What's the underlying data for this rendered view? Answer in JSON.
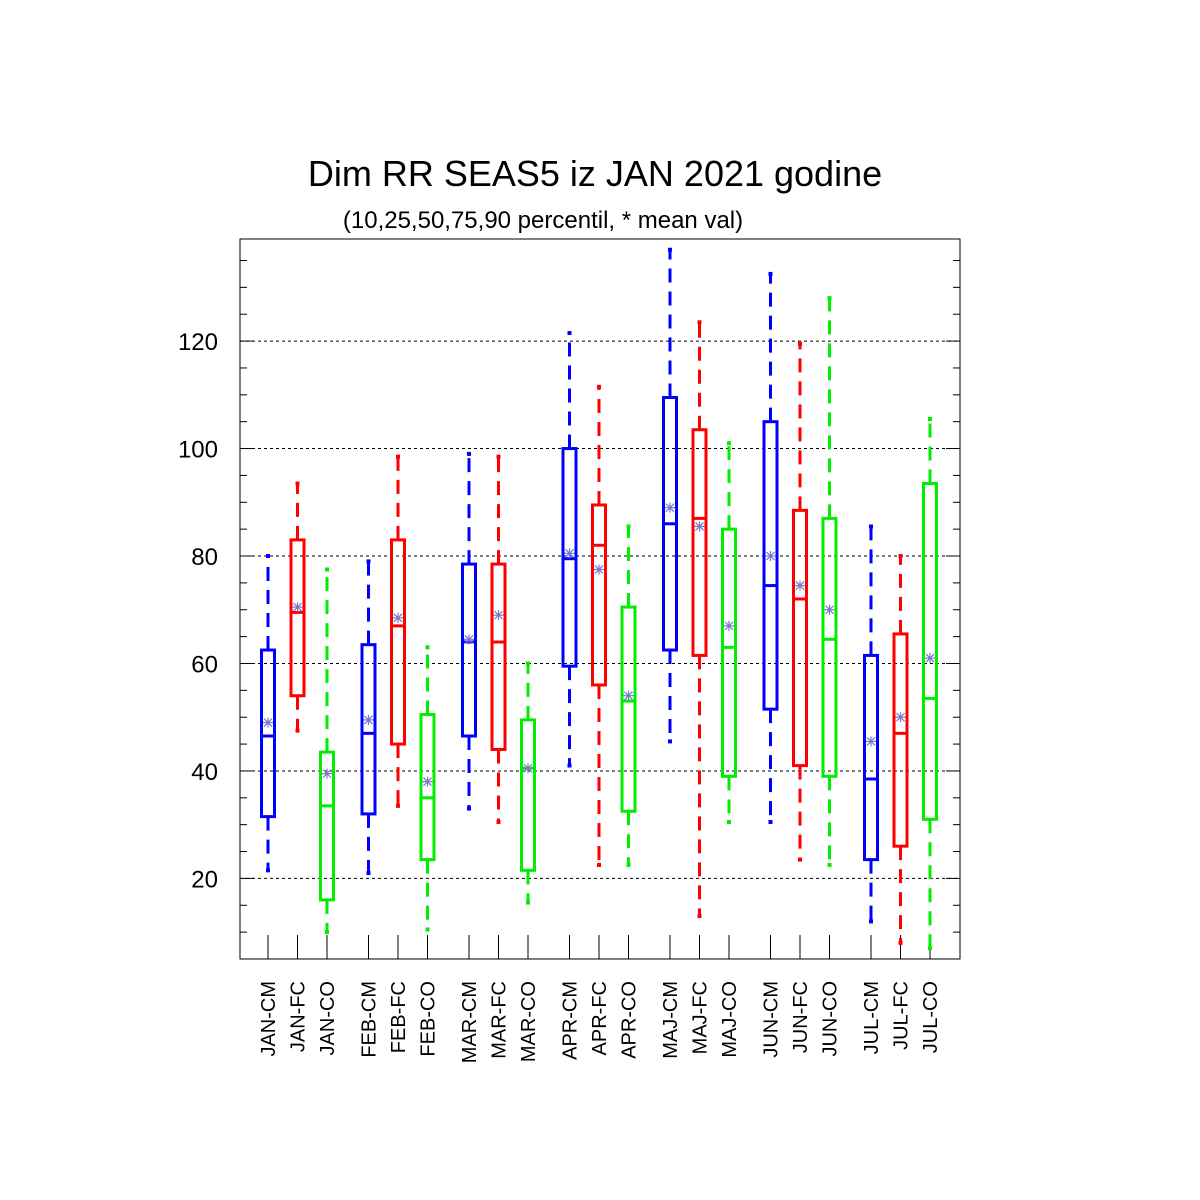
{
  "chart_data": {
    "type": "boxplot",
    "title": "Dim RR SEAS5 iz JAN 2021 godine",
    "subtitle": "(10,25,50,75,90 percentil, * mean val)",
    "xlabel": "",
    "ylabel": "",
    "ylim": [
      5,
      139
    ],
    "yticks": [
      20,
      40,
      60,
      80,
      100,
      120
    ],
    "grid": true,
    "colors": {
      "CM": "#0000ff",
      "FC": "#ff0000",
      "CO": "#00ee00",
      "mean": "#7777cc"
    },
    "boxes": [
      {
        "label": "JAN-CM",
        "type": "CM",
        "p10": 21.5,
        "p25": 31.5,
        "p50": 46.5,
        "p75": 62.5,
        "p90": 80,
        "mean": 49
      },
      {
        "label": "JAN-FC",
        "type": "FC",
        "p10": 47.5,
        "p25": 54,
        "p50": 69.5,
        "p75": 83,
        "p90": 93.5,
        "mean": 70.5
      },
      {
        "label": "JAN-CO",
        "type": "CO",
        "p10": 10,
        "p25": 16,
        "p50": 33.5,
        "p75": 43.5,
        "p90": 77.5,
        "mean": 39.5
      },
      {
        "label": "FEB-CM",
        "type": "CM",
        "p10": 21,
        "p25": 32,
        "p50": 47,
        "p75": 63.5,
        "p90": 79,
        "mean": 49.5
      },
      {
        "label": "FEB-FC",
        "type": "FC",
        "p10": 33.5,
        "p25": 45,
        "p50": 67,
        "p75": 83,
        "p90": 98.5,
        "mean": 68.5
      },
      {
        "label": "FEB-CO",
        "type": "CO",
        "p10": 10.5,
        "p25": 23.5,
        "p50": 35,
        "p75": 50.5,
        "p90": 63,
        "mean": 38
      },
      {
        "label": "MAR-CM",
        "type": "CM",
        "p10": 33,
        "p25": 46.5,
        "p50": 64,
        "p75": 78.5,
        "p90": 99,
        "mean": 64.5
      },
      {
        "label": "MAR-FC",
        "type": "FC",
        "p10": 30.5,
        "p25": 44,
        "p50": 64,
        "p75": 78.5,
        "p90": 98.5,
        "mean": 69
      },
      {
        "label": "MAR-CO",
        "type": "CO",
        "p10": 15.5,
        "p25": 21.5,
        "p50": 40.5,
        "p75": 49.5,
        "p90": 60,
        "mean": 40.5
      },
      {
        "label": "APR-CM",
        "type": "CM",
        "p10": 41,
        "p25": 59.5,
        "p50": 79.5,
        "p75": 100,
        "p90": 121.5,
        "mean": 80.5
      },
      {
        "label": "APR-FC",
        "type": "FC",
        "p10": 22.5,
        "p25": 56,
        "p50": 82,
        "p75": 89.5,
        "p90": 111.5,
        "mean": 77.5
      },
      {
        "label": "APR-CO",
        "type": "CO",
        "p10": 22.5,
        "p25": 32.5,
        "p50": 53,
        "p75": 70.5,
        "p90": 85.5,
        "mean": 54
      },
      {
        "label": "MAJ-CM",
        "type": "CM",
        "p10": 45.5,
        "p25": 62.5,
        "p50": 86,
        "p75": 109.5,
        "p90": 137,
        "mean": 89
      },
      {
        "label": "MAJ-FC",
        "type": "FC",
        "p10": 13,
        "p25": 61.5,
        "p50": 87,
        "p75": 103.5,
        "p90": 123.5,
        "mean": 85.5
      },
      {
        "label": "MAJ-CO",
        "type": "CO",
        "p10": 30.5,
        "p25": 39,
        "p50": 63,
        "p75": 85,
        "p90": 101,
        "mean": 67
      },
      {
        "label": "JUN-CM",
        "type": "CM",
        "p10": 30.5,
        "p25": 51.5,
        "p50": 74.5,
        "p75": 105,
        "p90": 132.5,
        "mean": 80
      },
      {
        "label": "JUN-FC",
        "type": "FC",
        "p10": 23.5,
        "p25": 41,
        "p50": 72,
        "p75": 88.5,
        "p90": 119.5,
        "mean": 74.5
      },
      {
        "label": "JUN-CO",
        "type": "CO",
        "p10": 22.5,
        "p25": 39,
        "p50": 64.5,
        "p75": 87,
        "p90": 128,
        "mean": 70
      },
      {
        "label": "JUL-CM",
        "type": "CM",
        "p10": 12,
        "p25": 23.5,
        "p50": 38.5,
        "p75": 61.5,
        "p90": 85.5,
        "mean": 45.5
      },
      {
        "label": "JUL-FC",
        "type": "FC",
        "p10": 8,
        "p25": 26,
        "p50": 47,
        "p75": 65.5,
        "p90": 80,
        "mean": 50
      },
      {
        "label": "JUL-CO",
        "type": "CO",
        "p10": 7,
        "p25": 31,
        "p50": 53.5,
        "p75": 93.5,
        "p90": 105.5,
        "mean": 61
      }
    ]
  }
}
